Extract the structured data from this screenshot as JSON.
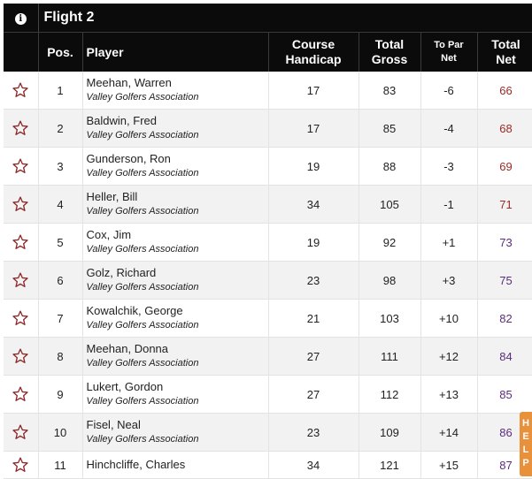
{
  "flight": {
    "title": "Flight 2",
    "info_icon": "info-icon"
  },
  "columns": {
    "pos": "Pos.",
    "player": "Player",
    "course_handicap": [
      "Course",
      "Handicap"
    ],
    "total_gross": [
      "Total",
      "Gross"
    ],
    "to_par_net": [
      "To Par",
      "Net"
    ],
    "total_net": [
      "Total",
      "Net"
    ]
  },
  "rows": [
    {
      "pos": "1",
      "name": "Meehan, Warren",
      "assoc": "Valley Golfers Association",
      "handicap": "17",
      "gross": "83",
      "to_par": "-6",
      "net": "66"
    },
    {
      "pos": "2",
      "name": "Baldwin, Fred",
      "assoc": "Valley Golfers Association",
      "handicap": "17",
      "gross": "85",
      "to_par": "-4",
      "net": "68"
    },
    {
      "pos": "3",
      "name": "Gunderson, Ron",
      "assoc": "Valley Golfers Association",
      "handicap": "19",
      "gross": "88",
      "to_par": "-3",
      "net": "69"
    },
    {
      "pos": "4",
      "name": "Heller, Bill",
      "assoc": "Valley Golfers Association",
      "handicap": "34",
      "gross": "105",
      "to_par": "-1",
      "net": "71"
    },
    {
      "pos": "5",
      "name": "Cox, Jim",
      "assoc": "Valley Golfers Association",
      "handicap": "19",
      "gross": "92",
      "to_par": "+1",
      "net": "73"
    },
    {
      "pos": "6",
      "name": "Golz, Richard",
      "assoc": "Valley Golfers Association",
      "handicap": "23",
      "gross": "98",
      "to_par": "+3",
      "net": "75"
    },
    {
      "pos": "7",
      "name": "Kowalchik, George",
      "assoc": "Valley Golfers Association",
      "handicap": "21",
      "gross": "103",
      "to_par": "+10",
      "net": "82"
    },
    {
      "pos": "8",
      "name": "Meehan, Donna",
      "assoc": "Valley Golfers Association",
      "handicap": "27",
      "gross": "111",
      "to_par": "+12",
      "net": "84"
    },
    {
      "pos": "9",
      "name": "Lukert, Gordon",
      "assoc": "Valley Golfers Association",
      "handicap": "27",
      "gross": "112",
      "to_par": "+13",
      "net": "85"
    },
    {
      "pos": "10",
      "name": "Fisel, Neal",
      "assoc": "Valley Golfers Association",
      "handicap": "23",
      "gross": "109",
      "to_par": "+14",
      "net": "86"
    },
    {
      "pos": "11",
      "name": "Hinchcliffe, Charles",
      "assoc": "",
      "handicap": "34",
      "gross": "121",
      "to_par": "+15",
      "net": "87"
    }
  ],
  "side_badge": {
    "letters": [
      "H",
      "E",
      "L",
      "P"
    ]
  },
  "colors": {
    "header_bg": "#0b0b0b",
    "negative": "#a0281e",
    "positive": "#4a2a7a",
    "star": "#8b2a2a",
    "badge": "#e8903a"
  },
  "icons": {
    "favorite": "star-outline-icon"
  }
}
